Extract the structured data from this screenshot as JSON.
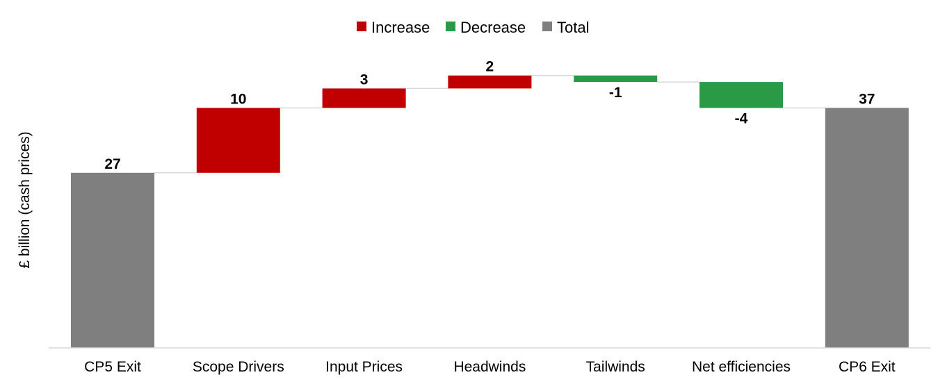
{
  "chart_data": {
    "type": "bar",
    "subtype": "waterfall",
    "title": "",
    "xlabel": "",
    "ylabel": "£ billion (cash prices)",
    "ylim": [
      0,
      43
    ],
    "grid": false,
    "legend_position": "top-center",
    "legend": [
      {
        "name": "Increase",
        "color": "#C00000"
      },
      {
        "name": "Decrease",
        "color": "#2A9A47"
      },
      {
        "name": "Total",
        "color": "#7F7F7F"
      }
    ],
    "categories": [
      "CP5 Exit",
      "Scope Drivers",
      "Input Prices",
      "Headwinds",
      "Tailwinds",
      "Net efficiencies",
      "CP6 Exit"
    ],
    "values": [
      27,
      10,
      3,
      2,
      -1,
      -4,
      37
    ],
    "bar_kinds": [
      "total",
      "increase",
      "increase",
      "increase",
      "decrease",
      "decrease",
      "total"
    ],
    "data_labels": [
      "27",
      "10",
      "3",
      "2",
      "-1",
      "-4",
      "37"
    ]
  }
}
